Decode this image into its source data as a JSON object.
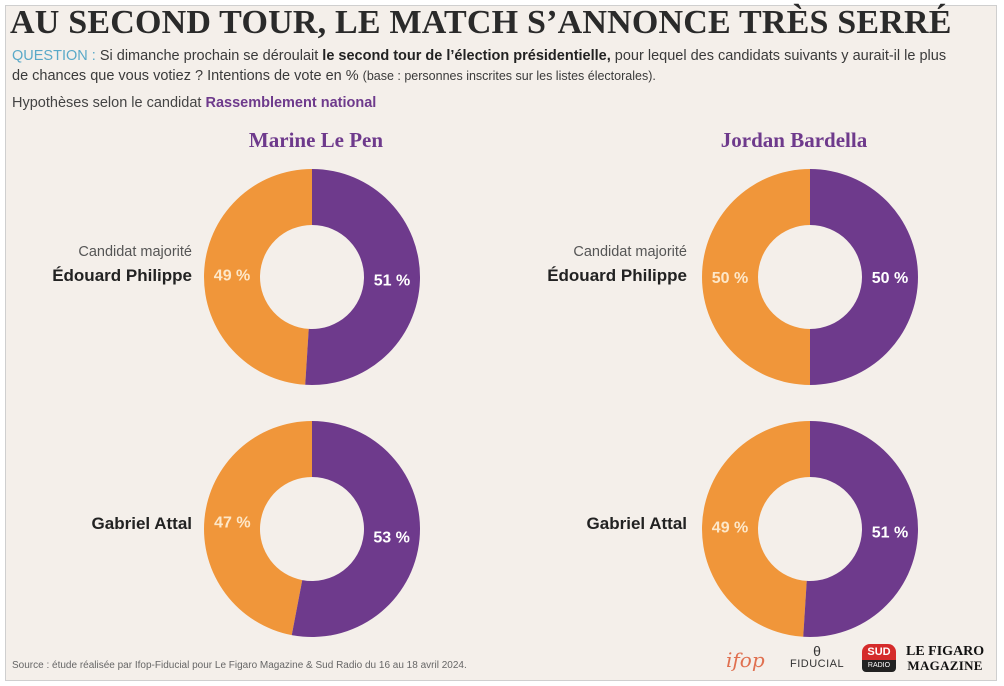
{
  "title": "AU SECOND TOUR, LE MATCH S’ANNONCE TRÈS SERRÉ",
  "question": {
    "label": "QUESTION :",
    "text_before": "Si dimanche prochain se déroulait",
    "bold": "le second tour de l’élection présidentielle,",
    "text_after": "pour lequel des candidats suivants y aurait-il le plus de chances que vous votiez ? Intentions de vote en %",
    "base": "(base : personnes inscrites sur les listes électorales)."
  },
  "hypothesis": {
    "prefix": "Hypothèses selon le candidat",
    "party": "Rassemblement national"
  },
  "rows": [
    {
      "sub": "Candidat majorité",
      "name": "Édouard Philippe"
    },
    {
      "sub": "",
      "name": "Gabriel Attal"
    }
  ],
  "colors": {
    "orange": "#f0963a",
    "purple": "#6e3a8c",
    "label_orange": "#fde7c8",
    "label_white": "#ffffff"
  },
  "chart_data": [
    {
      "type": "pie",
      "title": "Marine Le Pen",
      "row": "Édouard Philippe",
      "slices": [
        {
          "name": "Édouard Philippe",
          "value": 49,
          "label": "49 %"
        },
        {
          "name": "Marine Le Pen",
          "value": 51,
          "label": "51 %"
        }
      ]
    },
    {
      "type": "pie",
      "title": "Jordan Bardella",
      "row": "Édouard Philippe",
      "slices": [
        {
          "name": "Édouard Philippe",
          "value": 50,
          "label": "50 %"
        },
        {
          "name": "Jordan Bardella",
          "value": 50,
          "label": "50 %"
        }
      ]
    },
    {
      "type": "pie",
      "title": "Marine Le Pen",
      "row": "Gabriel Attal",
      "slices": [
        {
          "name": "Gabriel Attal",
          "value": 47,
          "label": "47 %"
        },
        {
          "name": "Marine Le Pen",
          "value": 53,
          "label": "53 %"
        }
      ]
    },
    {
      "type": "pie",
      "title": "Jordan Bardella",
      "row": "Gabriel Attal",
      "slices": [
        {
          "name": "Gabriel Attal",
          "value": 49,
          "label": "49 %"
        },
        {
          "name": "Jordan Bardella",
          "value": 51,
          "label": "51 %"
        }
      ]
    }
  ],
  "columns": [
    "Marine Le Pen",
    "Jordan Bardella"
  ],
  "source": "Source : étude réalisée par Ifop-Fiducial pour Le Figaro Magazine & Sud Radio du 16 au 18 avril 2024.",
  "logos": {
    "ifop": "ifop",
    "fiducial": "FIDUCIAL",
    "sud_top": "SUD",
    "sud_bottom": "RADIO",
    "figaro_line1": "LE FIGARO",
    "figaro_line2": "MAGAZINE"
  }
}
